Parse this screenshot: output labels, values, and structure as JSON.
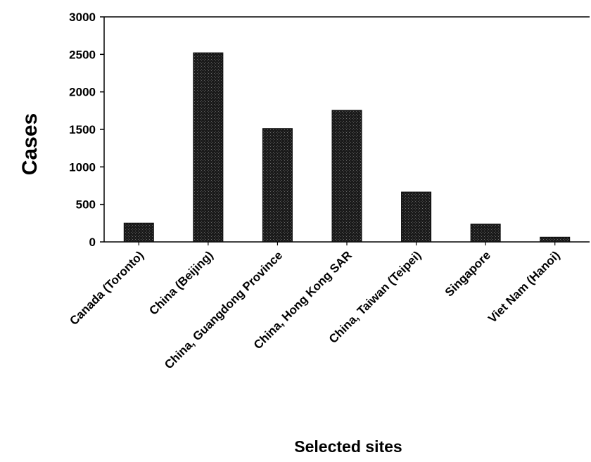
{
  "chart_data": {
    "type": "bar",
    "title": "",
    "xlabel": "Selected sites",
    "ylabel": "Cases",
    "ylim": [
      0,
      3000
    ],
    "yticks": [
      0,
      500,
      1000,
      1500,
      2000,
      2500,
      3000
    ],
    "grid": false,
    "legend": "none",
    "bar_color": "#1e1e1e",
    "categories": [
      "Canada (Toronto)",
      "China (Beijing)",
      "China, Guangdong Province",
      "China, Hong Kong SAR",
      "China, Taiwan (Teipei)",
      "Singapore",
      "Viet Nam (Hanoi)"
    ],
    "values": [
      251,
      2521,
      1512,
      1755,
      665,
      238,
      63
    ]
  }
}
